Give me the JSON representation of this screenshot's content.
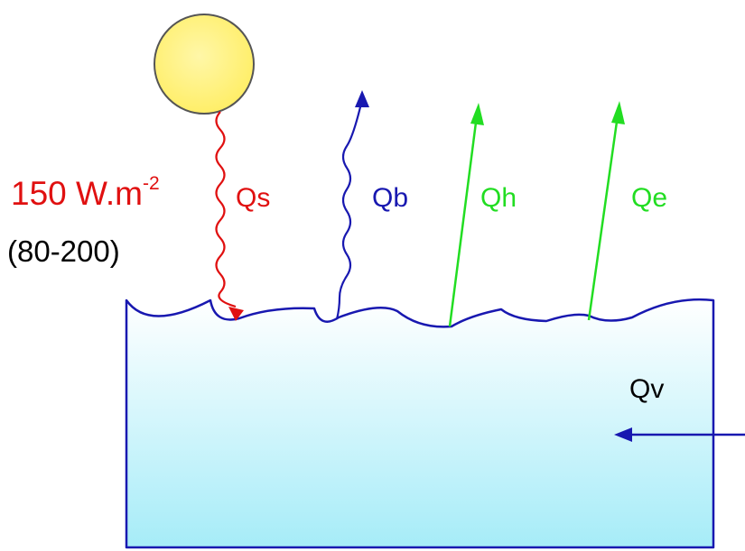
{
  "colors": {
    "sun_fill": "#ffee66",
    "sun_stroke": "#555555",
    "solar": "#e01010",
    "longwave": "#1818b0",
    "turbulent": "#22dd22",
    "water_top": "#ffffff",
    "water_bottom": "#a6ecf8",
    "outline": "#1818b0"
  },
  "labels": {
    "solar_value": "150 W.m",
    "solar_exponent": "-2",
    "solar_range": "(80-200)",
    "qs": "Qs",
    "qb": "Qb",
    "qh": "Qh",
    "qe": "Qe",
    "qv": "Qv"
  },
  "icons": {
    "sun": "sun-icon",
    "wave": "wavy-arrow-icon",
    "arrow": "straight-arrow-icon"
  }
}
